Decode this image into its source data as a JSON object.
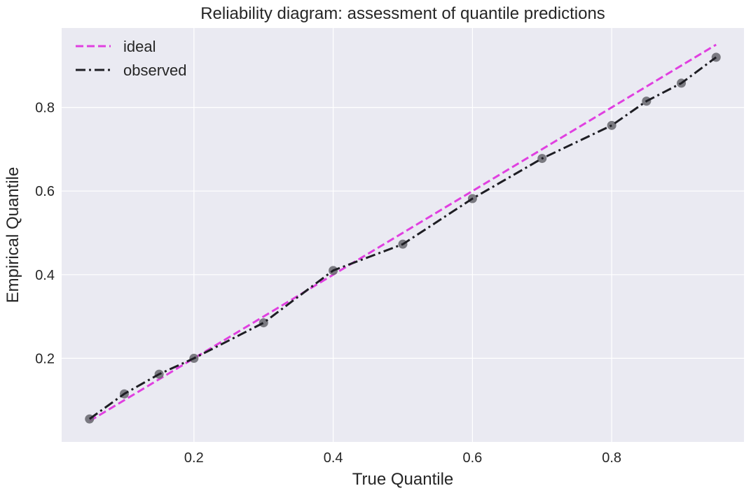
{
  "chart_data": {
    "type": "line",
    "title": "Reliability diagram: assessment of quantile predictions",
    "xlabel": "True Quantile",
    "ylabel": "Empirical Quantile",
    "xlim": [
      0.01,
      0.99
    ],
    "ylim": [
      0.0,
      0.99
    ],
    "xticks": [
      0.2,
      0.4,
      0.6,
      0.8
    ],
    "yticks": [
      0.2,
      0.4,
      0.6,
      0.8
    ],
    "grid": true,
    "background_color": "#eaeaf2",
    "legend_position": "top-left",
    "series": [
      {
        "name": "ideal",
        "style": "dashed",
        "color": "#e040e0",
        "x": [
          0.05,
          0.95
        ],
        "y": [
          0.05,
          0.95
        ]
      },
      {
        "name": "observed",
        "style": "dashdot",
        "color": "#1e1e24",
        "marker_color": "#6e6e74",
        "x": [
          0.05,
          0.1,
          0.15,
          0.2,
          0.3,
          0.4,
          0.5,
          0.6,
          0.7,
          0.8,
          0.85,
          0.9,
          0.95
        ],
        "y": [
          0.055,
          0.115,
          0.162,
          0.2,
          0.285,
          0.41,
          0.473,
          0.582,
          0.678,
          0.757,
          0.815,
          0.858,
          0.92
        ]
      }
    ]
  }
}
